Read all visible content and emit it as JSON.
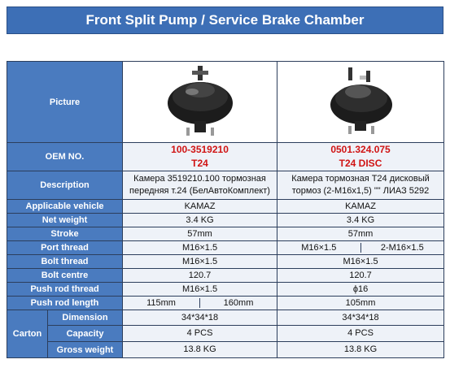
{
  "header": {
    "title": "Front Split Pump / Service Brake Chamber"
  },
  "table": {
    "picture_label": "Picture",
    "oem": {
      "label": "OEM NO.",
      "cells": [
        {
          "code": "100-3519210",
          "model": "T24"
        },
        {
          "code": "0501.324.075",
          "model": "T24 DISC"
        }
      ]
    },
    "rows": [
      {
        "label": "Description",
        "cells": [
          "Камера 3519210.100 тормозная передняя т.24 (БелАвтоКомплект)",
          "Камера тормозная T24 дисковый тормоз (2-M16x1,5) \"\" ЛИАЗ 5292"
        ]
      },
      {
        "label": "Applicable vehicle",
        "cells": [
          "KAMAZ",
          "KAMAZ"
        ]
      },
      {
        "label": "Net weight",
        "cells": [
          "3.4 KG",
          "3.4 KG"
        ]
      },
      {
        "label": "Stroke",
        "cells": [
          "57mm",
          "57mm"
        ]
      },
      {
        "label": "Port thread",
        "cells": [
          "M16×1.5",
          [
            "M16×1.5",
            "2-M16×1.5"
          ]
        ]
      },
      {
        "label": "Bolt thread",
        "cells": [
          "M16×1.5",
          "M16×1.5"
        ]
      },
      {
        "label": "Bolt centre",
        "cells": [
          "120.7",
          "120.7"
        ]
      },
      {
        "label": "Push rod thread",
        "cells": [
          "M16×1.5",
          "ϕ16"
        ]
      },
      {
        "label": "Push rod length",
        "cells": [
          [
            "115mm",
            "160mm"
          ],
          "105mm"
        ]
      }
    ],
    "carton": {
      "label": "Carton",
      "rows": [
        {
          "label": "Dimension",
          "cells": [
            "34*34*18",
            "34*34*18"
          ]
        },
        {
          "label": "Capacity",
          "cells": [
            "4 PCS",
            "4 PCS"
          ]
        },
        {
          "label": "Gross weight",
          "cells": [
            "13.8 KG",
            "13.8 KG"
          ]
        }
      ]
    }
  }
}
